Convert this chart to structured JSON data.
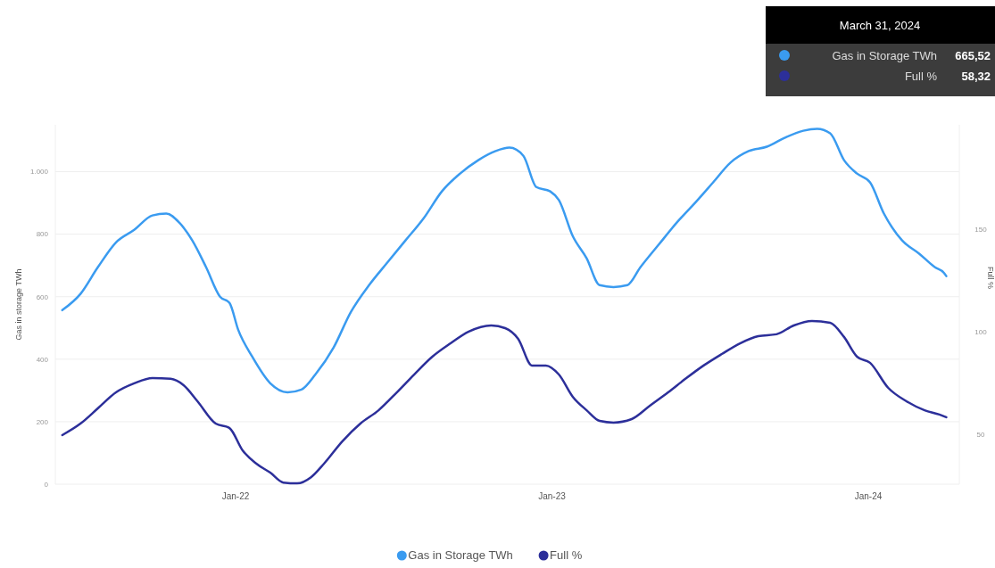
{
  "chart_data": {
    "type": "line",
    "ylabel": "Gas in storage TWh",
    "y2label": "Full %",
    "xlim": [
      "2021-06-07",
      "2024-04-15"
    ],
    "xticks": [
      {
        "value": "2022-01-01",
        "label": "Jan-22"
      },
      {
        "value": "2023-01-01",
        "label": "Jan-23"
      },
      {
        "value": "2024-01-01",
        "label": "Jan-24"
      }
    ],
    "ylim": [
      0,
      1150
    ],
    "yticks": [
      0,
      200,
      400,
      600,
      800,
      {
        "value": 1000,
        "label": "1.000"
      }
    ],
    "y2lim": [
      25.7,
      200.7
    ],
    "y2ticks": [
      50,
      100,
      150
    ],
    "grid": "y",
    "legend": "bottom",
    "line_style": "solid",
    "marker": "none",
    "annotations": [
      "March 31, 2024",
      "665,52",
      "58,32"
    ],
    "series": [
      {
        "name": "Gas in Storage TWh",
        "color": "#3a9bf0",
        "x": [
          "2021-06-15",
          "2021-07-06",
          "2021-07-26",
          "2021-08-16",
          "2021-09-06",
          "2021-09-27",
          "2021-10-13",
          "2021-10-28",
          "2021-11-12",
          "2021-11-28",
          "2021-12-14",
          "2021-12-25",
          "2022-01-04",
          "2022-01-20",
          "2022-02-10",
          "2022-03-02",
          "2022-03-18",
          "2022-04-03",
          "2022-04-24",
          "2022-05-14",
          "2022-06-04",
          "2022-06-25",
          "2022-07-16",
          "2022-08-06",
          "2022-08-27",
          "2022-09-17",
          "2022-10-08",
          "2022-10-28",
          "2022-11-13",
          "2022-11-29",
          "2022-12-14",
          "2022-12-30",
          "2023-01-09",
          "2023-01-25",
          "2023-02-10",
          "2023-02-25",
          "2023-03-13",
          "2023-03-29",
          "2023-04-13",
          "2023-05-04",
          "2023-05-25",
          "2023-06-15",
          "2023-07-06",
          "2023-07-26",
          "2023-08-16",
          "2023-09-06",
          "2023-09-27",
          "2023-10-18",
          "2023-11-03",
          "2023-11-18",
          "2023-12-04",
          "2023-12-19",
          "2024-01-03",
          "2024-01-19",
          "2024-02-09",
          "2024-02-29",
          "2024-03-18",
          "2024-03-28",
          "2024-03-31"
        ],
        "values": [
          557,
          609,
          694,
          774,
          814,
          860,
          866,
          837,
          780,
          694,
          600,
          580,
          494,
          409,
          323,
          294,
          303,
          351,
          437,
          551,
          637,
          709,
          780,
          851,
          937,
          994,
          1037,
          1066,
          1077,
          1051,
          951,
          937,
          909,
          794,
          723,
          637,
          631,
          637,
          694,
          766,
          837,
          900,
          966,
          1029,
          1066,
          1080,
          1109,
          1131,
          1137,
          1123,
          1037,
          994,
          966,
          866,
          780,
          737,
          694,
          677,
          666
        ]
      },
      {
        "name": "Full %",
        "color": "#2c2f9a",
        "axis": "y2",
        "x": [
          "2021-06-15",
          "2021-07-06",
          "2021-07-26",
          "2021-08-16",
          "2021-09-06",
          "2021-09-27",
          "2021-10-18",
          "2021-11-02",
          "2021-11-18",
          "2021-12-09",
          "2021-12-25",
          "2022-01-09",
          "2022-01-25",
          "2022-02-10",
          "2022-02-25",
          "2022-03-13",
          "2022-03-29",
          "2022-04-13",
          "2022-05-04",
          "2022-05-25",
          "2022-06-15",
          "2022-07-06",
          "2022-07-26",
          "2022-08-16",
          "2022-09-06",
          "2022-09-27",
          "2022-10-23",
          "2022-11-08",
          "2022-11-23",
          "2022-12-09",
          "2022-12-25",
          "2023-01-09",
          "2023-01-25",
          "2023-02-10",
          "2023-02-25",
          "2023-03-13",
          "2023-04-03",
          "2023-04-24",
          "2023-05-15",
          "2023-06-04",
          "2023-06-25",
          "2023-07-16",
          "2023-08-06",
          "2023-08-27",
          "2023-09-17",
          "2023-10-07",
          "2023-10-28",
          "2023-11-18",
          "2023-12-04",
          "2023-12-19",
          "2024-01-03",
          "2024-01-24",
          "2024-02-14",
          "2024-03-06",
          "2024-03-23",
          "2024-03-31"
        ],
        "values": [
          49.6,
          55.2,
          62.6,
          70.4,
          74.8,
          77.4,
          77,
          73.9,
          66.1,
          55.2,
          53,
          42.2,
          35.7,
          31.3,
          26.5,
          26.1,
          29.1,
          35.7,
          46.5,
          55.2,
          61.7,
          70.4,
          79.1,
          87.8,
          94.3,
          100,
          103,
          101.7,
          96.5,
          83.5,
          83.5,
          79.1,
          68.3,
          61.7,
          56.5,
          55.7,
          57.4,
          63.9,
          70.4,
          77,
          83.5,
          89.1,
          94.3,
          97.8,
          98.7,
          103,
          105.2,
          104.3,
          97.4,
          87.8,
          84.8,
          72.6,
          66.1,
          61.7,
          59.6,
          58.3
        ]
      }
    ]
  }
}
